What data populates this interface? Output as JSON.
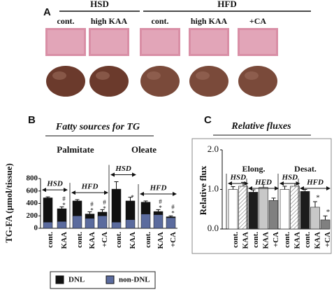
{
  "panel_a": {
    "label": "A",
    "groups": [
      {
        "name": "HSD",
        "images": [
          "cont.",
          "high KAA"
        ]
      },
      {
        "name": "HFD",
        "images": [
          "cont.",
          "high KAA",
          "+CA"
        ]
      }
    ]
  },
  "chart_data": [
    {
      "type": "stacked-bar",
      "label": "B",
      "title": "Fatty sources for TG",
      "ylabel": "TG-FA (µmol/tissue)",
      "ylim": [
        0,
        800
      ],
      "yticks": [
        0,
        200,
        400,
        600,
        800
      ],
      "categories": [
        "cont.",
        "KAA",
        "cont.",
        "KAA",
        "+CA"
      ],
      "bracket_labels": [
        "HSD",
        "HFD"
      ],
      "series": [
        {
          "name": "DNL",
          "color": "#111111"
        },
        {
          "name": "non-DNL",
          "color": "#5b6b9e"
        }
      ],
      "groups": [
        {
          "name": "Palmitate",
          "series": [
            {
              "values": [
                390,
                205,
                240,
                70,
                60
              ]
            },
            {
              "values": [
                100,
                110,
                200,
                160,
                200
              ]
            }
          ],
          "errors": [
            15,
            30,
            20,
            35,
            40
          ],
          "significance": [
            [],
            [
              "#",
              "*"
            ],
            [],
            [
              "#",
              "*"
            ],
            [
              "#",
              "*"
            ]
          ]
        },
        {
          "name": "Oleate",
          "series": [
            {
              "values": [
                530,
                300,
                190,
                50,
                15
              ]
            },
            {
              "values": [
                100,
                140,
                230,
                220,
                170
              ]
            }
          ],
          "errors": [
            120,
            60,
            20,
            30,
            15
          ],
          "significance": [
            [],
            [
              "*"
            ],
            [],
            [
              "#",
              "*"
            ],
            [
              "#",
              "*"
            ]
          ]
        }
      ]
    },
    {
      "type": "bar",
      "label": "C",
      "title": "Relative fluxes",
      "ylabel": "Relative flux",
      "ylim": [
        0,
        2
      ],
      "yticks": [
        {
          "value": 0,
          "label": "0.0"
        },
        {
          "value": 1,
          "label": "1.0"
        },
        {
          "value": 2,
          "label": "2.0"
        }
      ],
      "categories": [
        "cont.",
        "KAA",
        "cont.",
        "KAA",
        "+CA"
      ],
      "bracket_labels": [
        "HSD",
        "HFD"
      ],
      "colors": [
        "#ffffff",
        "#eeeeee",
        "#1c1c1c",
        "#c8c8c8",
        "#808080"
      ],
      "hatched": [
        false,
        true,
        false,
        false,
        false
      ],
      "groups": [
        {
          "name": "Elong.",
          "values": [
            1.0,
            1.08,
            0.93,
            1.05,
            0.72
          ],
          "errors": [
            0.07,
            0.1,
            0.06,
            0.08,
            0.06
          ],
          "significance": [
            [],
            [],
            [],
            [],
            []
          ]
        },
        {
          "name": "Desat.",
          "values": [
            1.0,
            1.08,
            0.95,
            0.55,
            0.23
          ],
          "errors": [
            0.08,
            0.07,
            0.05,
            0.14,
            0.1
          ],
          "significance": [
            [],
            [],
            [],
            [
              "*"
            ],
            [
              "*"
            ]
          ]
        }
      ]
    }
  ]
}
